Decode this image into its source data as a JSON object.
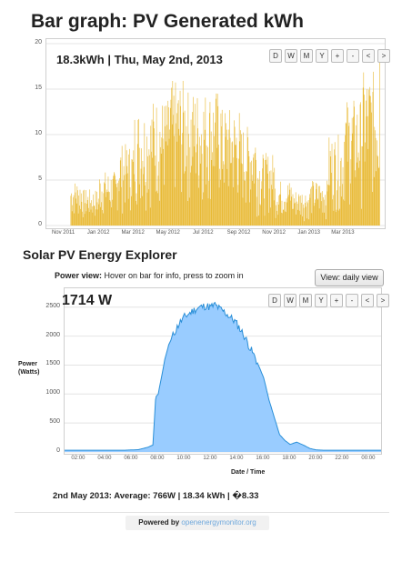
{
  "bar_section": {
    "title": "Bar graph: PV Generated kWh",
    "readout": "18.3kWh | Thu, May 2nd, 2013",
    "buttons": [
      "D",
      "W",
      "M",
      "Y",
      "+",
      "-",
      "<",
      ">"
    ],
    "bar_color": "#e8b830"
  },
  "explorer": {
    "title": "Solar PV Energy Explorer",
    "hint_bold": "Power view:",
    "hint_text": " Hover on bar for info, press to zoom in",
    "view_button": "View: daily view",
    "readout": "1714 W",
    "buttons": [
      "D",
      "W",
      "M",
      "Y",
      "+",
      "-",
      "<",
      ">"
    ],
    "y_title_line1": "Power",
    "y_title_line2": "(Watts)",
    "x_title": "Date / Time",
    "fill_color": "#99ccff",
    "line_color": "#2a8fd8",
    "summary": "2nd May 2013: Average: 766W | 18.34 kWh | �8.33"
  },
  "footer": {
    "powered_by": "Powered by ",
    "link": "openenergymonitor.org",
    "link_color": "#6fa8dc"
  },
  "chart_data": [
    {
      "type": "bar",
      "title": "Bar graph: PV Generated kWh",
      "ylim": [
        0,
        20
      ],
      "y_ticks": [
        "0",
        "5",
        "10",
        "15",
        "20"
      ],
      "x_ticks": [
        "Nov 2011",
        "Jan 2012",
        "Mar 2012",
        "May 2012",
        "Jul 2012",
        "Sep 2012",
        "Nov 2012",
        "Jan 2013",
        "Mar 2013"
      ],
      "grid": true,
      "x_start": "2011-10-01",
      "x_end": "2013-05-08",
      "data_start": "2011-11-12",
      "data_end": "2013-05-02",
      "monthly_envelope_kwh": [
        [
          "Nov 2011",
          5
        ],
        [
          "Dec 2011",
          4
        ],
        [
          "Jan 2012",
          6
        ],
        [
          "Feb 2012",
          9
        ],
        [
          "Mar 2012",
          13
        ],
        [
          "Apr 2012",
          14
        ],
        [
          "May 2012",
          16
        ],
        [
          "Jun 2012",
          15
        ],
        [
          "Jul 2012",
          15
        ],
        [
          "Aug 2012",
          13
        ],
        [
          "Sep 2012",
          11
        ],
        [
          "Oct 2012",
          8
        ],
        [
          "Nov 2012",
          5
        ],
        [
          "Dec 2012",
          4
        ],
        [
          "Jan 2013",
          5
        ],
        [
          "Feb 2013",
          10
        ],
        [
          "Mar 2013",
          14
        ],
        [
          "Apr 2013",
          17
        ],
        [
          "May 2013",
          18.3
        ]
      ],
      "highlight": {
        "date": "2013-05-02",
        "value": 18.3
      }
    },
    {
      "type": "area",
      "title": "Solar PV Energy Explorer",
      "ylabel": "Power (Watts)",
      "xlabel": "Date / Time",
      "ylim": [
        0,
        2700
      ],
      "y_ticks": [
        "0",
        "500",
        "1000",
        "1500",
        "2000",
        "2500"
      ],
      "x_ticks": [
        "02:00",
        "04:00",
        "06:00",
        "08:00",
        "10:00",
        "12:00",
        "14:00",
        "16:00",
        "18:00",
        "20:00",
        "22:00",
        "00:00"
      ],
      "xlim_hours": [
        0.9,
        24.9
      ],
      "grid": true,
      "series": [
        {
          "x": [
            0.9,
            4.0,
            5.5,
            6.5,
            7.2,
            7.4,
            7.6,
            7.8,
            7.85,
            8.0,
            8.3,
            8.5,
            8.8,
            9.2,
            9.6,
            10.0,
            10.4,
            10.8,
            11.2,
            11.6,
            12.0,
            12.3,
            12.6,
            13.0,
            13.4,
            13.8,
            14.2,
            14.6,
            15.0,
            15.3,
            15.6,
            16.0,
            16.4,
            16.8,
            17.2,
            17.6,
            18.0,
            18.5,
            19.0,
            19.5,
            20.0,
            20.5,
            21.0,
            22.0,
            23.0,
            24.9
          ],
          "y": [
            30,
            30,
            30,
            40,
            80,
            100,
            120,
            900,
            960,
            1000,
            1350,
            1600,
            1850,
            2050,
            2220,
            2330,
            2400,
            2460,
            2500,
            2520,
            2500,
            2540,
            2480,
            2420,
            2340,
            2260,
            2130,
            1970,
            1780,
            1650,
            1500,
            1280,
            900,
            600,
            300,
            200,
            130,
            170,
            120,
            60,
            35,
            30,
            30,
            30,
            30,
            30
          ]
        }
      ]
    }
  ]
}
